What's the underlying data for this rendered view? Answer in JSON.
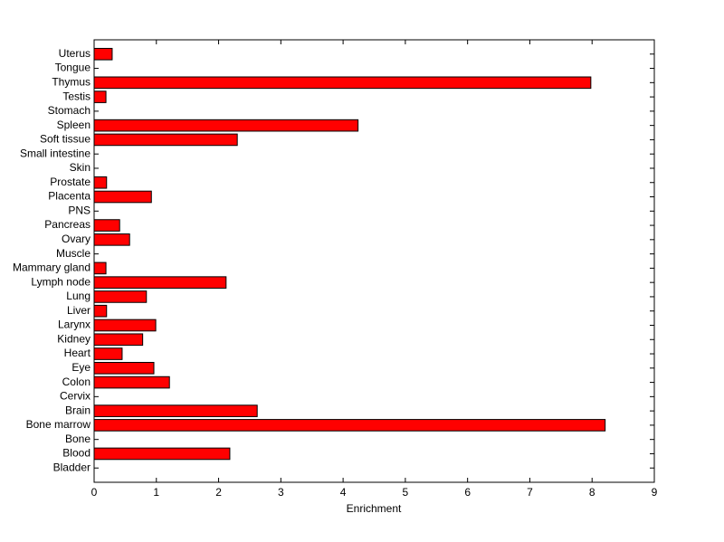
{
  "chart_data": {
    "type": "barh",
    "xlabel": "Enrichment",
    "categories": [
      "Bladder",
      "Blood",
      "Bone",
      "Bone marrow",
      "Brain",
      "Cervix",
      "Colon",
      "Eye",
      "Heart",
      "Kidney",
      "Larynx",
      "Liver",
      "Lung",
      "Lymph node",
      "Mammary gland",
      "Muscle",
      "Ovary",
      "Pancreas",
      "PNS",
      "Placenta",
      "Prostate",
      "Skin",
      "Small intestine",
      "Soft tissue",
      "Spleen",
      "Stomach",
      "Testis",
      "Thymus",
      "Tongue",
      "Uterus"
    ],
    "values": [
      0,
      2.18,
      0,
      8.21,
      2.62,
      0,
      1.21,
      0.96,
      0.45,
      0.78,
      0.99,
      0.2,
      0.84,
      2.12,
      0.19,
      0,
      0.57,
      0.41,
      0,
      0.92,
      0.2,
      0,
      0,
      2.3,
      4.24,
      0,
      0.19,
      7.98,
      0,
      0.29
    ],
    "color": "#ff0000",
    "xlim": [
      0,
      9
    ],
    "xticks": [
      0,
      1,
      2,
      3,
      4,
      5,
      6,
      7,
      8,
      9
    ]
  }
}
